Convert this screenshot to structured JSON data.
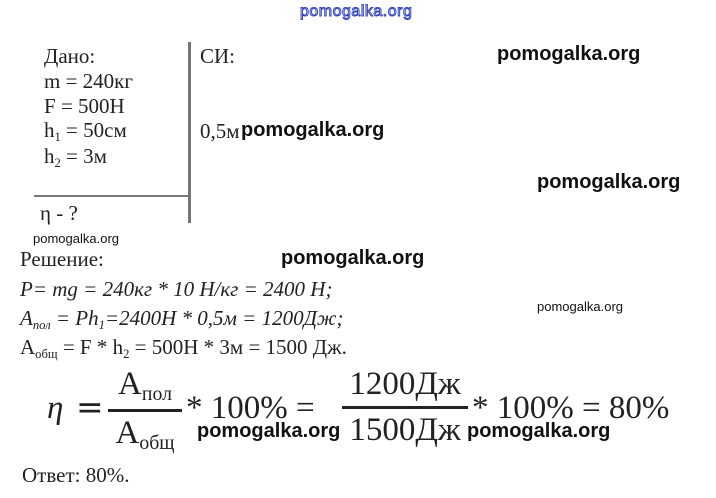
{
  "watermark": "pomogalka.org",
  "given": {
    "heading": "Дано:",
    "lines": [
      {
        "lhs": "m",
        "rhs": "= 240кг"
      },
      {
        "lhs": "F",
        "rhs": "= 500Н"
      },
      {
        "lhs": "h",
        "sub": "1",
        "rhs": "= 50см"
      },
      {
        "lhs": "h",
        "sub": "2",
        "rhs": "= 3м"
      }
    ],
    "find": "η - ?"
  },
  "si": {
    "heading": "СИ:",
    "value": "0,5м"
  },
  "solution": {
    "heading": "Решение:",
    "line1": "P= mg = 240кг * 10 Н/кг = 2400 Н;",
    "line2_a": "A",
    "line2_sub": "пол",
    "line2_b": " = Ph",
    "line2_sub2": "1",
    "line2_c": "=2400Н * 0,5м = 1200Дж;",
    "line3_a": "A",
    "line3_sub": "общ",
    "line3_b": " = F * h",
    "line3_sub2": "2",
    "line3_c": " = 500Н * 3м = 1500 Дж."
  },
  "formula": {
    "eta": "η",
    "eq": "=",
    "num1_a": "A",
    "num1_sub": "пол",
    "den1_a": "A",
    "den1_sub": "общ",
    "mid": "* 100% =",
    "num2": "1200Дж",
    "den2": "1500Дж",
    "end": "* 100% = 80%"
  },
  "answer": "Ответ: 80%."
}
